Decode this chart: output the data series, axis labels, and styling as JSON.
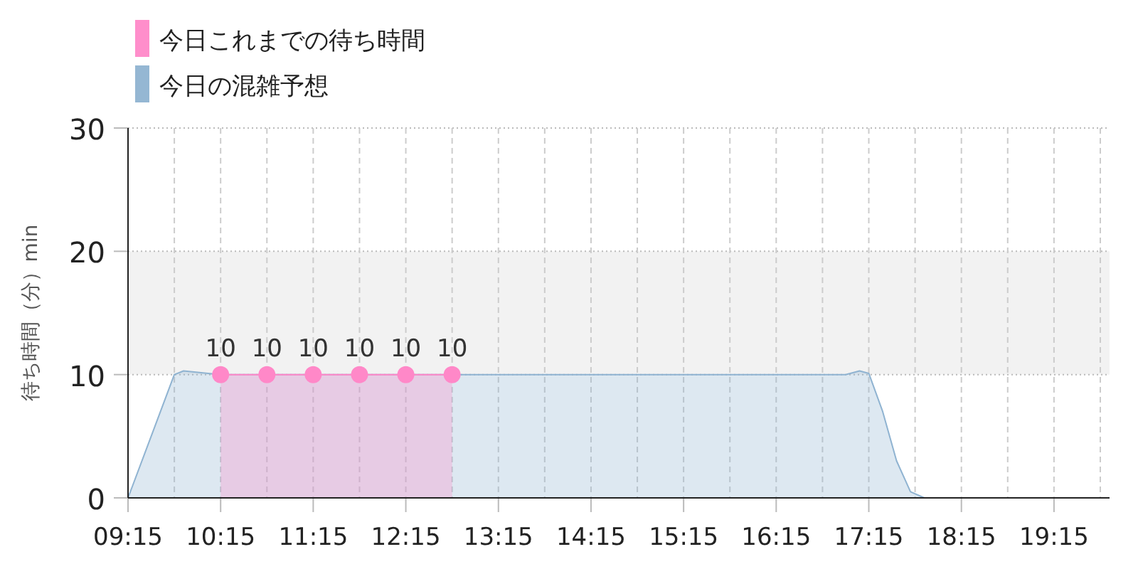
{
  "chart_data": {
    "type": "area",
    "ylabel": "待ち時間（分）min",
    "xlim": [
      9.25,
      19.85
    ],
    "ylim": [
      0,
      30
    ],
    "yticks": [
      0,
      10,
      20,
      30
    ],
    "xticks": [
      {
        "value": 9.25,
        "label": "09:15"
      },
      {
        "value": 9.75,
        "label": null
      },
      {
        "value": 10.25,
        "label": "10:15"
      },
      {
        "value": 10.75,
        "label": null
      },
      {
        "value": 11.25,
        "label": "11:15"
      },
      {
        "value": 11.75,
        "label": null
      },
      {
        "value": 12.25,
        "label": "12:15"
      },
      {
        "value": 12.75,
        "label": null
      },
      {
        "value": 13.25,
        "label": "13:15"
      },
      {
        "value": 13.75,
        "label": null
      },
      {
        "value": 14.25,
        "label": "14:15"
      },
      {
        "value": 14.75,
        "label": null
      },
      {
        "value": 15.25,
        "label": "15:15"
      },
      {
        "value": 15.75,
        "label": null
      },
      {
        "value": 16.25,
        "label": "16:15"
      },
      {
        "value": 16.75,
        "label": null
      },
      {
        "value": 17.25,
        "label": "17:15"
      },
      {
        "value": 17.75,
        "label": null
      },
      {
        "value": 18.25,
        "label": "18:15"
      },
      {
        "value": 18.75,
        "label": null
      },
      {
        "value": 19.25,
        "label": "19:15"
      },
      {
        "value": 19.75,
        "label": null
      }
    ],
    "grid": true,
    "legend": "top left",
    "bands": [
      {
        "axis": "y",
        "from": 10,
        "to": 20,
        "color": "#f2f2f2"
      }
    ],
    "series": [
      {
        "name": "今日の混雑予想",
        "color": "#8fb3d1",
        "marker": "none",
        "x": [
          9.25,
          9.5,
          9.75,
          9.85,
          10.25,
          11.25,
          12.25,
          13.25,
          14.25,
          15.25,
          16.25,
          17.0,
          17.15,
          17.25,
          17.4,
          17.55,
          17.7,
          17.85,
          18.0,
          18.25,
          19.25,
          19.85
        ],
        "values": [
          0,
          5,
          10,
          10.3,
          10,
          10,
          10,
          10,
          10,
          10,
          10,
          10,
          10.3,
          10.1,
          7,
          3,
          0.5,
          0,
          0,
          0,
          0,
          0
        ]
      },
      {
        "name": "今日これまでの待ち時間",
        "color": "#ff88c8",
        "marker": "circle",
        "data_labels": true,
        "x": [
          10.25,
          10.75,
          11.25,
          11.75,
          12.25,
          12.75
        ],
        "values": [
          10,
          10,
          10,
          10,
          10,
          10
        ]
      }
    ]
  }
}
